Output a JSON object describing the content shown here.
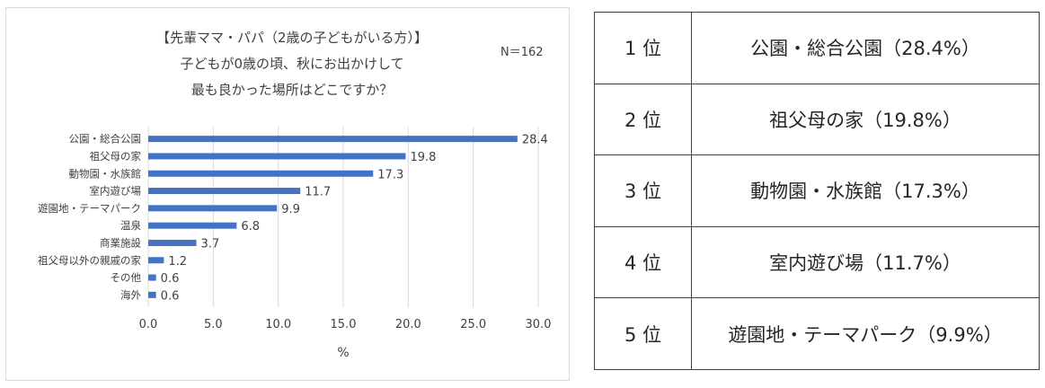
{
  "chart_data": {
    "type": "bar",
    "orientation": "horizontal",
    "title_lines": [
      "【先輩ママ・パパ（2歳の子どもがいる方）】",
      "子どもが0歳の頃、秋にお出かけして",
      "最も良かった場所はどこですか？"
    ],
    "sample_size": "N＝162",
    "categories": [
      "公園・総合公園",
      "祖父母の家",
      "動物園・水族館",
      "室内遊び場",
      "遊園地・テーマパーク",
      "温泉",
      "商業施設",
      "祖父母以外の親戚の家",
      "その他",
      "海外"
    ],
    "values": [
      28.4,
      19.8,
      17.3,
      11.7,
      9.9,
      6.8,
      3.7,
      1.2,
      0.6,
      0.6
    ],
    "value_labels": [
      "28.4",
      "19.8",
      "17.3",
      "11.7",
      "9.9",
      "6.8",
      "3.7",
      "1.2",
      "0.6",
      "0.6"
    ],
    "x_ticks": [
      "0.0",
      "5.0",
      "10.0",
      "15.0",
      "20.0",
      "25.0",
      "30.0"
    ],
    "xlim": [
      0,
      30
    ],
    "xlabel": "%",
    "grid": true,
    "bar_color": "#4472c4"
  },
  "ranking": [
    {
      "rank": "1 位",
      "item": "公園・総合公園（28.4%）"
    },
    {
      "rank": "2 位",
      "item": "祖父母の家（19.8%）"
    },
    {
      "rank": "3 位",
      "item": "動物園・水族館（17.3%）"
    },
    {
      "rank": "4 位",
      "item": "室内遊び場（11.7%）"
    },
    {
      "rank": "5 位",
      "item": "遊園地・テーマパーク（9.9%）"
    }
  ]
}
